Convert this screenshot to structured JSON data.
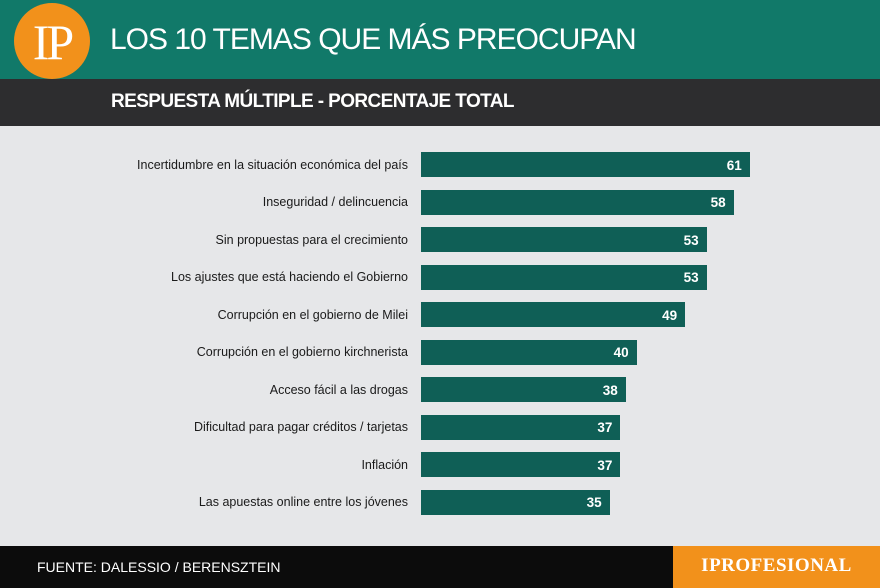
{
  "header": {
    "logo": "IP",
    "title": "LOS 10 TEMAS QUE MÁS PREOCUPAN",
    "subtitle": "RESPUESTA MÚLTIPLE - PORCENTAJE TOTAL"
  },
  "colors": {
    "header_bg": "#117969",
    "subheader_bg": "#2d2d2f",
    "bar": "#0f5f56",
    "accent": "#f2911b",
    "plot_bg": "#e6e7e9"
  },
  "chart_data": {
    "type": "bar",
    "orientation": "horizontal",
    "title": "LOS 10 TEMAS QUE MÁS PREOCUPAN",
    "subtitle": "RESPUESTA MÚLTIPLE - PORCENTAJE TOTAL",
    "categories": [
      "Incertidumbre en la situación económica del país",
      "Inseguridad / delincuencia",
      "Sin propuestas para el crecimiento",
      "Los ajustes que está haciendo el Gobierno",
      "Corrupción en el gobierno de Milei",
      "Corrupción en el gobierno kirchnerista",
      "Acceso fácil a las drogas",
      "Dificultad para pagar créditos / tarjetas",
      "Inflación",
      "Las apuestas online entre los jóvenes"
    ],
    "values": [
      61,
      58,
      53,
      53,
      49,
      40,
      38,
      37,
      37,
      35
    ],
    "xlabel": "",
    "ylabel": "",
    "xlim": [
      0,
      85
    ],
    "grid": false,
    "legend": "none"
  },
  "footer": {
    "source": "FUENTE: DALESSIO / BERENSZTEIN",
    "brand": "IPROFESIONAL"
  }
}
